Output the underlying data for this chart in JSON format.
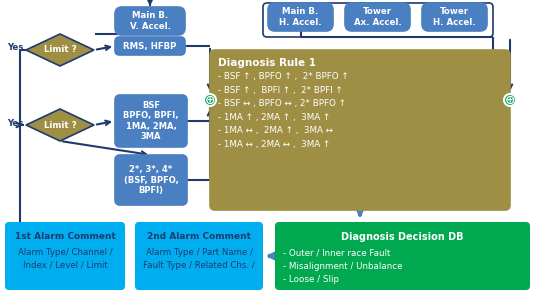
{
  "bg_color": "#ffffff",
  "dark_blue": "#1f3a6e",
  "blue_box": "#4a7fc1",
  "gold_box": "#9e8f45",
  "green_box": "#00a84f",
  "cyan_box": "#00aeef",
  "arrow_color": "#1f3a6e",
  "circle_color": "#00a84f",
  "main_b_v": "Main B.\nV. Accel.",
  "rms_hfbp": "RMS, HFBP",
  "bsf_box": "BSF\nBPFO, BPFI,\n1MA, 2MA,\n3MA",
  "bspfi_box": "2*, 3*, 4*\n(BSF, BPFO,\nBPFI)",
  "limit1": "Limit ?",
  "limit2": "Limit ?",
  "yes1": "Yes",
  "yes2": "Yes",
  "main_b_h": "Main B.\nH. Accel.",
  "tower_ax": "Tower\nAx. Accel.",
  "tower_h": "Tower\nH. Accel.",
  "diagnosis_title": "Diagnosis Rule 1",
  "diagnosis_content": "- BSF ↑ , BPFO ↑ ,  2* BPFO ↑\n- BSF ↑ ,  BPFI ↑ ,  2* BPFI ↑\n- BSF ↔ , BPFO ↔ , 2* BPFO ↑\n- 1MA ↑ , 2MA ↑ ,  3MA ↑\n- 1MA ↔ ,  2MA ↑ ,  3MA ↔\n- 1MA ↔ , 2MA ↔ ,  3MA ↑",
  "alarm1_title": "1st Alarm Comment",
  "alarm1_content": "Alarm Type/ Channel /\nIndex / Level / Limit",
  "alarm2_title": "2nd Alarm Comment",
  "alarm2_content": "Alarm Type / Part Name /\nFault Type / Related Chs. /",
  "db_title": "Diagnosis Decision DB",
  "db_content": "- Outer / Inner race Fault\n- Misalignment / Unbalance\n- Loose / Slip"
}
